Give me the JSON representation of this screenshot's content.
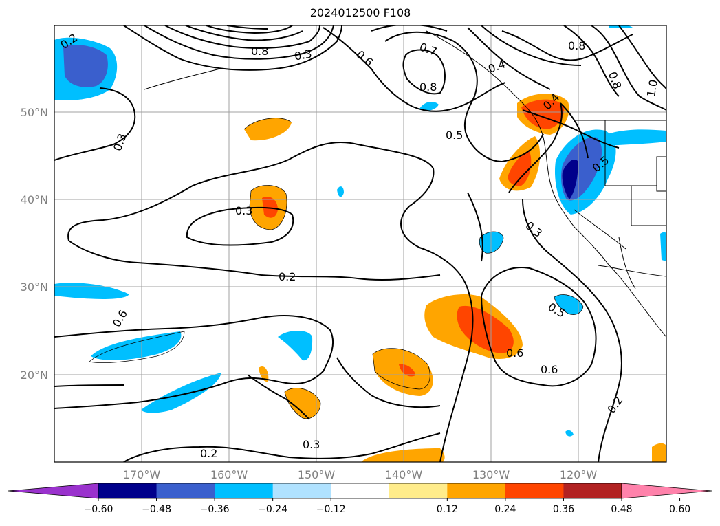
{
  "title": "2024012500 F108",
  "map": {
    "lat_labels": [
      "50°N",
      "40°N",
      "30°N",
      "20°N"
    ],
    "lon_labels": [
      "170°W",
      "160°W",
      "150°W",
      "140°W",
      "130°W",
      "120°W"
    ]
  },
  "contour_labels": [
    "0.2",
    "0.3",
    "0.3",
    "0.2",
    "0.6",
    "0.7",
    "0.8",
    "0.8",
    "0.5",
    "0.8",
    "0.8",
    "1.0",
    "0.6",
    "0.4",
    "0.5",
    "0.3",
    "0.5",
    "0.6",
    "0.6",
    "0.2",
    "0.4",
    "0.3",
    "0.2",
    "0.3"
  ],
  "colorbar": {
    "ticks": [
      "−0.60",
      "−0.48",
      "−0.36",
      "−0.24",
      "−0.12",
      "0.12",
      "0.24",
      "0.36",
      "0.48",
      "0.60"
    ],
    "colors": [
      "#9a32cd",
      "#00008b",
      "#3a5fcd",
      "#00bfff",
      "#b0e2ff",
      "#ffffff",
      "#ffec8b",
      "#ffa500",
      "#ff4500",
      "#b22222",
      "#ff82ab"
    ]
  }
}
